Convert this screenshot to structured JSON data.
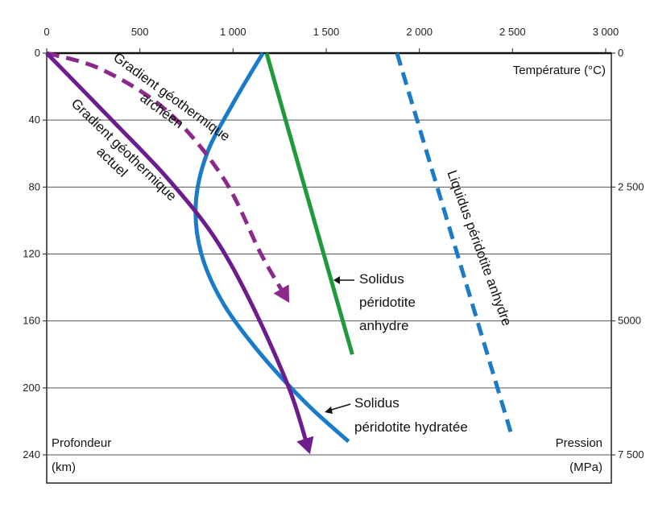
{
  "chart_data": {
    "type": "line",
    "title": "",
    "x_axis": {
      "label": "Température (°C)",
      "range": [
        0,
        3000
      ],
      "ticks": [
        0,
        500,
        1000,
        1500,
        2000,
        2500,
        3000
      ],
      "tick_labels": [
        "0",
        "500",
        "1 000",
        "1 500",
        "2 000",
        "2 500",
        "3 000"
      ],
      "position": "top"
    },
    "y_axis_left": {
      "label_line1": "Profondeur",
      "label_line2": "(km)",
      "range": [
        0,
        250
      ],
      "inverted": true,
      "ticks": [
        0,
        40,
        80,
        120,
        160,
        200,
        240
      ],
      "tick_labels": [
        "0",
        "40",
        "80",
        "120",
        "160",
        "200",
        "240"
      ]
    },
    "y_axis_right": {
      "label_line1": "Pression",
      "label_line2": "(MPa)",
      "ticks": [
        0,
        80,
        160,
        240
      ],
      "tick_labels": [
        "0",
        "2 500",
        "5000",
        "7 500"
      ]
    },
    "grid": "horizontal",
    "series": [
      {
        "name": "Solidus péridotite hydratée",
        "label_lines": [
          "Solidus",
          "péridotite hydratée"
        ],
        "color": "#1a7bc8",
        "style": "solid",
        "x": [
          1160,
          1000,
          860,
          800,
          830,
          950,
          1150,
          1400,
          1620
        ],
        "y": [
          0,
          30,
          60,
          90,
          120,
          150,
          180,
          210,
          232
        ]
      },
      {
        "name": "Solidus péridotite anhydre",
        "label_lines": [
          "Solidus",
          "péridotite",
          "anhydre"
        ],
        "color": "#1f9a3a",
        "style": "solid",
        "x": [
          1180,
          1640
        ],
        "y": [
          0,
          180
        ]
      },
      {
        "name": "Liquidus péridotite anhydre",
        "label_lines": [
          "Liquidus péridotite anhydre"
        ],
        "color": "#1a7bc8",
        "style": "dashed",
        "x": [
          1880,
          2500
        ],
        "y": [
          0,
          230
        ]
      },
      {
        "name": "Gradient géothermique archéen",
        "label_lines": [
          "Gradient géothermique",
          "archéen"
        ],
        "color": "#8c2a8c",
        "style": "dashed",
        "x": [
          0,
          300,
          650,
          950,
          1150,
          1280
        ],
        "y": [
          0,
          10,
          35,
          75,
          120,
          145
        ]
      },
      {
        "name": "Gradient géothermique actuel",
        "label_lines": [
          "Gradient géothermique",
          "actuel"
        ],
        "color": "#6d1c8e",
        "style": "solid",
        "x": [
          0,
          350,
          650,
          900,
          1100,
          1300,
          1400
        ],
        "y": [
          0,
          40,
          75,
          110,
          150,
          200,
          235
        ]
      }
    ]
  }
}
